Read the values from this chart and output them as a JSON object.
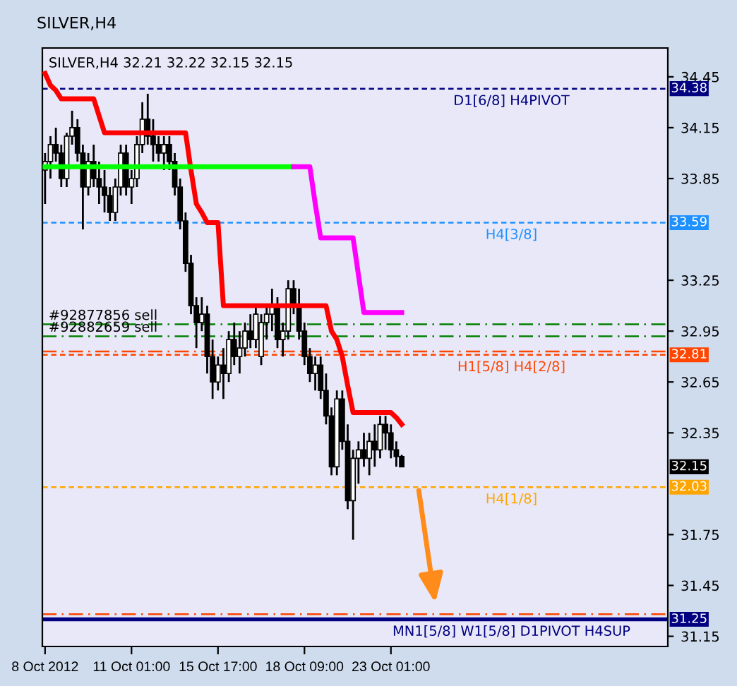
{
  "chart_data": {
    "type": "candlestick",
    "title": "SILVER,H4 32.21 32.22 32.15 32.15",
    "subtitle": "SILVER,H4",
    "categories": [
      "8 Oct 2012",
      null,
      null,
      null,
      null,
      null,
      null,
      null,
      null,
      null,
      null,
      null,
      null,
      null,
      null,
      null,
      "11 Oct 01:00",
      null,
      null,
      null,
      null,
      null,
      null,
      null,
      null,
      null,
      null,
      null,
      null,
      null,
      null,
      null,
      "15 Oct 17:00",
      null,
      null,
      null,
      null,
      null,
      null,
      null,
      null,
      null,
      null,
      null,
      null,
      null,
      null,
      null,
      "18 Oct 09:00",
      null,
      null,
      null,
      null,
      null,
      null,
      null,
      null,
      null,
      null,
      null,
      null,
      null,
      null,
      null,
      "23 Oct 01:00",
      null,
      null
    ],
    "ohlc": [
      [
        33.9,
        34.0,
        33.7,
        33.95
      ],
      [
        33.95,
        34.1,
        33.85,
        34.05
      ],
      [
        34.05,
        34.15,
        33.95,
        34.0
      ],
      [
        34.0,
        34.05,
        33.8,
        33.85
      ],
      [
        33.85,
        34.12,
        33.8,
        34.1
      ],
      [
        34.1,
        34.25,
        34.05,
        34.15
      ],
      [
        34.15,
        34.2,
        33.95,
        34.0
      ],
      [
        34.0,
        34.05,
        33.55,
        33.8
      ],
      [
        33.8,
        34.0,
        33.75,
        33.95
      ],
      [
        33.95,
        34.05,
        33.8,
        33.85
      ],
      [
        33.85,
        33.95,
        33.7,
        33.8
      ],
      [
        33.8,
        33.9,
        33.65,
        33.75
      ],
      [
        33.75,
        33.8,
        33.6,
        33.65
      ],
      [
        33.65,
        33.85,
        33.6,
        33.8
      ],
      [
        33.8,
        34.05,
        33.75,
        34.0
      ],
      [
        34.0,
        34.05,
        33.75,
        33.8
      ],
      [
        33.8,
        33.9,
        33.7,
        33.85
      ],
      [
        33.85,
        34.1,
        33.8,
        34.05
      ],
      [
        34.05,
        34.3,
        34.0,
        34.2
      ],
      [
        34.2,
        34.35,
        34.05,
        34.1
      ],
      [
        34.1,
        34.2,
        33.95,
        34.05
      ],
      [
        34.05,
        34.1,
        33.95,
        34.0
      ],
      [
        34.0,
        34.1,
        33.9,
        34.05
      ],
      [
        34.05,
        34.1,
        33.9,
        33.95
      ],
      [
        33.95,
        34.0,
        33.75,
        33.8
      ],
      [
        33.8,
        33.85,
        33.55,
        33.6
      ],
      [
        33.6,
        33.65,
        33.3,
        33.35
      ],
      [
        33.35,
        33.4,
        33.05,
        33.1
      ],
      [
        33.1,
        33.15,
        32.85,
        33.0
      ],
      [
        33.0,
        33.15,
        32.95,
        33.05
      ],
      [
        33.05,
        33.1,
        32.7,
        32.8
      ],
      [
        32.8,
        32.9,
        32.55,
        32.65
      ],
      [
        32.65,
        32.8,
        32.6,
        32.75
      ],
      [
        32.75,
        32.85,
        32.55,
        32.7
      ],
      [
        32.7,
        32.95,
        32.65,
        32.9
      ],
      [
        32.9,
        33.0,
        32.75,
        32.8
      ],
      [
        32.8,
        32.95,
        32.7,
        32.85
      ],
      [
        32.85,
        33.0,
        32.8,
        32.95
      ],
      [
        32.95,
        33.05,
        32.85,
        32.9
      ],
      [
        32.9,
        33.1,
        32.85,
        33.05
      ],
      [
        32.8,
        33.05,
        32.75,
        33.0
      ],
      [
        33.0,
        33.1,
        32.9,
        33.05
      ],
      [
        33.05,
        33.2,
        32.95,
        33.1
      ],
      [
        33.1,
        33.15,
        32.85,
        32.9
      ],
      [
        32.9,
        33.0,
        32.8,
        32.95
      ],
      [
        32.95,
        33.25,
        32.9,
        33.2
      ],
      [
        33.2,
        33.25,
        33.05,
        33.1
      ],
      [
        33.1,
        33.2,
        32.9,
        32.95
      ],
      [
        32.95,
        33.0,
        32.75,
        32.8
      ],
      [
        32.8,
        32.85,
        32.65,
        32.7
      ],
      [
        32.7,
        32.8,
        32.6,
        32.75
      ],
      [
        32.75,
        32.8,
        32.55,
        32.6
      ],
      [
        32.6,
        32.7,
        32.4,
        32.45
      ],
      [
        32.45,
        32.5,
        32.1,
        32.15
      ],
      [
        32.15,
        32.6,
        32.1,
        32.55
      ],
      [
        32.55,
        32.6,
        32.25,
        32.3
      ],
      [
        32.3,
        32.4,
        31.9,
        31.95
      ],
      [
        31.95,
        32.25,
        31.72,
        32.2
      ],
      [
        32.2,
        32.3,
        32.05,
        32.25
      ],
      [
        32.25,
        32.35,
        32.15,
        32.2
      ],
      [
        32.2,
        32.35,
        32.1,
        32.3
      ],
      [
        32.3,
        32.4,
        32.15,
        32.25
      ],
      [
        32.25,
        32.45,
        32.2,
        32.4
      ],
      [
        32.4,
        32.45,
        32.25,
        32.35
      ],
      [
        32.35,
        32.4,
        32.2,
        32.25
      ],
      [
        32.25,
        32.3,
        32.15,
        32.21
      ],
      [
        32.21,
        32.22,
        32.15,
        32.15
      ]
    ],
    "series": [
      {
        "type": "line",
        "color": "#ff0000",
        "values": [
          34.47,
          34.4,
          34.37,
          34.32,
          34.32,
          34.32,
          34.32,
          34.32,
          34.32,
          34.32,
          34.22,
          34.12,
          34.12,
          34.12,
          34.12,
          34.12,
          34.12,
          34.12,
          34.12,
          34.12,
          34.12,
          34.12,
          34.12,
          34.12,
          34.12,
          34.12,
          34.12,
          33.9,
          33.7,
          33.65,
          33.59,
          33.59,
          33.59,
          33.1,
          33.1,
          33.1,
          33.1,
          33.1,
          33.1,
          33.1,
          33.1,
          33.1,
          33.1,
          33.1,
          33.1,
          33.1,
          33.1,
          33.1,
          33.1,
          33.1,
          33.1,
          33.1,
          33.1,
          32.95,
          32.9,
          32.8,
          32.63,
          32.47,
          32.47,
          32.47,
          32.47,
          32.47,
          32.47,
          32.47,
          32.47,
          32.44,
          32.4
        ]
      },
      {
        "type": "line",
        "color": "#00ff00",
        "values": [
          33.92,
          33.92,
          33.92,
          33.92,
          33.92,
          33.92,
          33.92,
          33.92,
          33.92,
          33.92,
          33.92,
          33.92,
          33.92,
          33.92,
          33.92,
          33.92,
          33.92,
          33.92,
          33.92,
          33.92,
          33.92,
          33.92,
          33.92,
          33.92,
          33.92,
          33.92,
          33.92,
          33.92,
          33.92,
          33.92,
          33.92,
          33.92,
          33.92,
          33.92,
          33.92,
          33.92,
          33.92,
          33.92,
          33.92,
          33.92,
          33.92,
          33.92,
          33.92,
          33.92,
          33.92,
          33.92,
          33.92,
          null,
          null,
          null,
          null,
          null,
          null,
          null,
          null,
          null,
          null,
          null,
          null,
          null,
          null,
          null,
          null,
          null,
          null,
          null,
          null
        ]
      },
      {
        "type": "line",
        "color": "#ff00ff",
        "values": [
          null,
          null,
          null,
          null,
          null,
          null,
          null,
          null,
          null,
          null,
          null,
          null,
          null,
          null,
          null,
          null,
          null,
          null,
          null,
          null,
          null,
          null,
          null,
          null,
          null,
          null,
          null,
          null,
          null,
          null,
          null,
          null,
          null,
          null,
          null,
          null,
          null,
          null,
          null,
          null,
          null,
          null,
          null,
          null,
          null,
          null,
          33.92,
          33.92,
          33.92,
          33.92,
          33.7,
          33.5,
          33.5,
          33.5,
          33.5,
          33.5,
          33.5,
          33.5,
          33.28,
          33.06,
          33.06,
          33.06,
          33.06,
          33.06,
          33.06,
          33.06,
          33.06
        ]
      }
    ],
    "ref_lines": [
      {
        "axis": "y",
        "value": 34.38,
        "label": "34.38",
        "color": "#000080",
        "line_style": "dashed"
      },
      {
        "axis": "y",
        "value": 33.59,
        "label": "33.59",
        "color": "#1e90ff",
        "line_style": "dashed"
      },
      {
        "axis": "y",
        "value": 32.99,
        "label": null,
        "color": "#008000",
        "line_style": "dashdot"
      },
      {
        "axis": "y",
        "value": 32.92,
        "label": null,
        "color": "#008000",
        "line_style": "dashdot"
      },
      {
        "axis": "y",
        "value": 32.83,
        "label": null,
        "color": "#ff4500",
        "line_style": "dashdot"
      },
      {
        "axis": "y",
        "value": 32.81,
        "label": "32.81",
        "color": "#ff4500",
        "line_style": "dashed"
      },
      {
        "axis": "y",
        "value": 32.03,
        "label": "32.03",
        "color": "#ffa500",
        "line_style": "dashed"
      },
      {
        "axis": "y",
        "value": 31.28,
        "label": null,
        "color": "#ff4500",
        "line_style": "dashdot"
      },
      {
        "axis": "y",
        "value": 31.25,
        "label": "31.25",
        "color": "#000080",
        "line_style": "solid"
      }
    ],
    "annotations": [
      {
        "text": "D1[6/8] H4PIVOT",
        "y": 34.38
      },
      {
        "text": "H4[3/8]",
        "y": 33.59
      },
      {
        "text": "#92877856 sell",
        "y": 32.99
      },
      {
        "text": "#92882659 sell",
        "y": 32.92
      },
      {
        "text": "H1[5/8] H4[2/8]",
        "y": 32.81
      },
      {
        "text": "H4[1/8]",
        "y": 32.03
      },
      {
        "text": "MN1[5/8] W1[5/8] D1PIVOT H4SUP",
        "y": 31.25
      },
      "32.15"
    ],
    "ylim": [
      31.09,
      34.62
    ],
    "yticks": [
      34.45,
      34.15,
      33.85,
      33.25,
      32.95,
      32.65,
      32.35,
      31.75,
      31.45,
      31.15
    ],
    "grid": false,
    "legend": false
  }
}
